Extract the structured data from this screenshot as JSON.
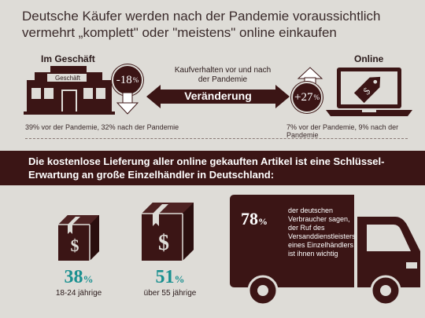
{
  "title": "Deutsche Käufer werden nach der Pandemie voraussichtlich vermehrt „komplett\" oder \"meistens\" online einkaufen",
  "store": {
    "label": "Im Geschäft",
    "sign": "Geschäft",
    "change_value": "-18",
    "change_unit": "%",
    "note": "39% vor der Pandemie, 32% nach der Pandemie"
  },
  "center": {
    "subtitle": "Kaufverhalten vor und nach der Pandemie",
    "arrow_label": "Veränderung"
  },
  "online": {
    "label": "Online",
    "change_value": "+27",
    "change_unit": "%",
    "note": "7% vor der Pandemie, 9% nach der Pandemie"
  },
  "banner": {
    "text": "Die kostenlose Lieferung aller online gekauften Artikel ist eine Schlüssel-Erwartung an große Einzelhändler in Deutschland:"
  },
  "boxes": [
    {
      "value": "38",
      "unit": "%",
      "label": "18-24 jährige"
    },
    {
      "value": "51",
      "unit": "%",
      "label": "über 55 jährige"
    }
  ],
  "truck": {
    "value": "78",
    "unit": "%",
    "text": "der deutschen Verbraucher sagen, der Ruf des Versanddienstleisters eines Einzelhändlers ist ihnen wichtig"
  },
  "colors": {
    "dark": "#3b1515",
    "teal": "#1a9090",
    "background": "#dedcd7"
  }
}
